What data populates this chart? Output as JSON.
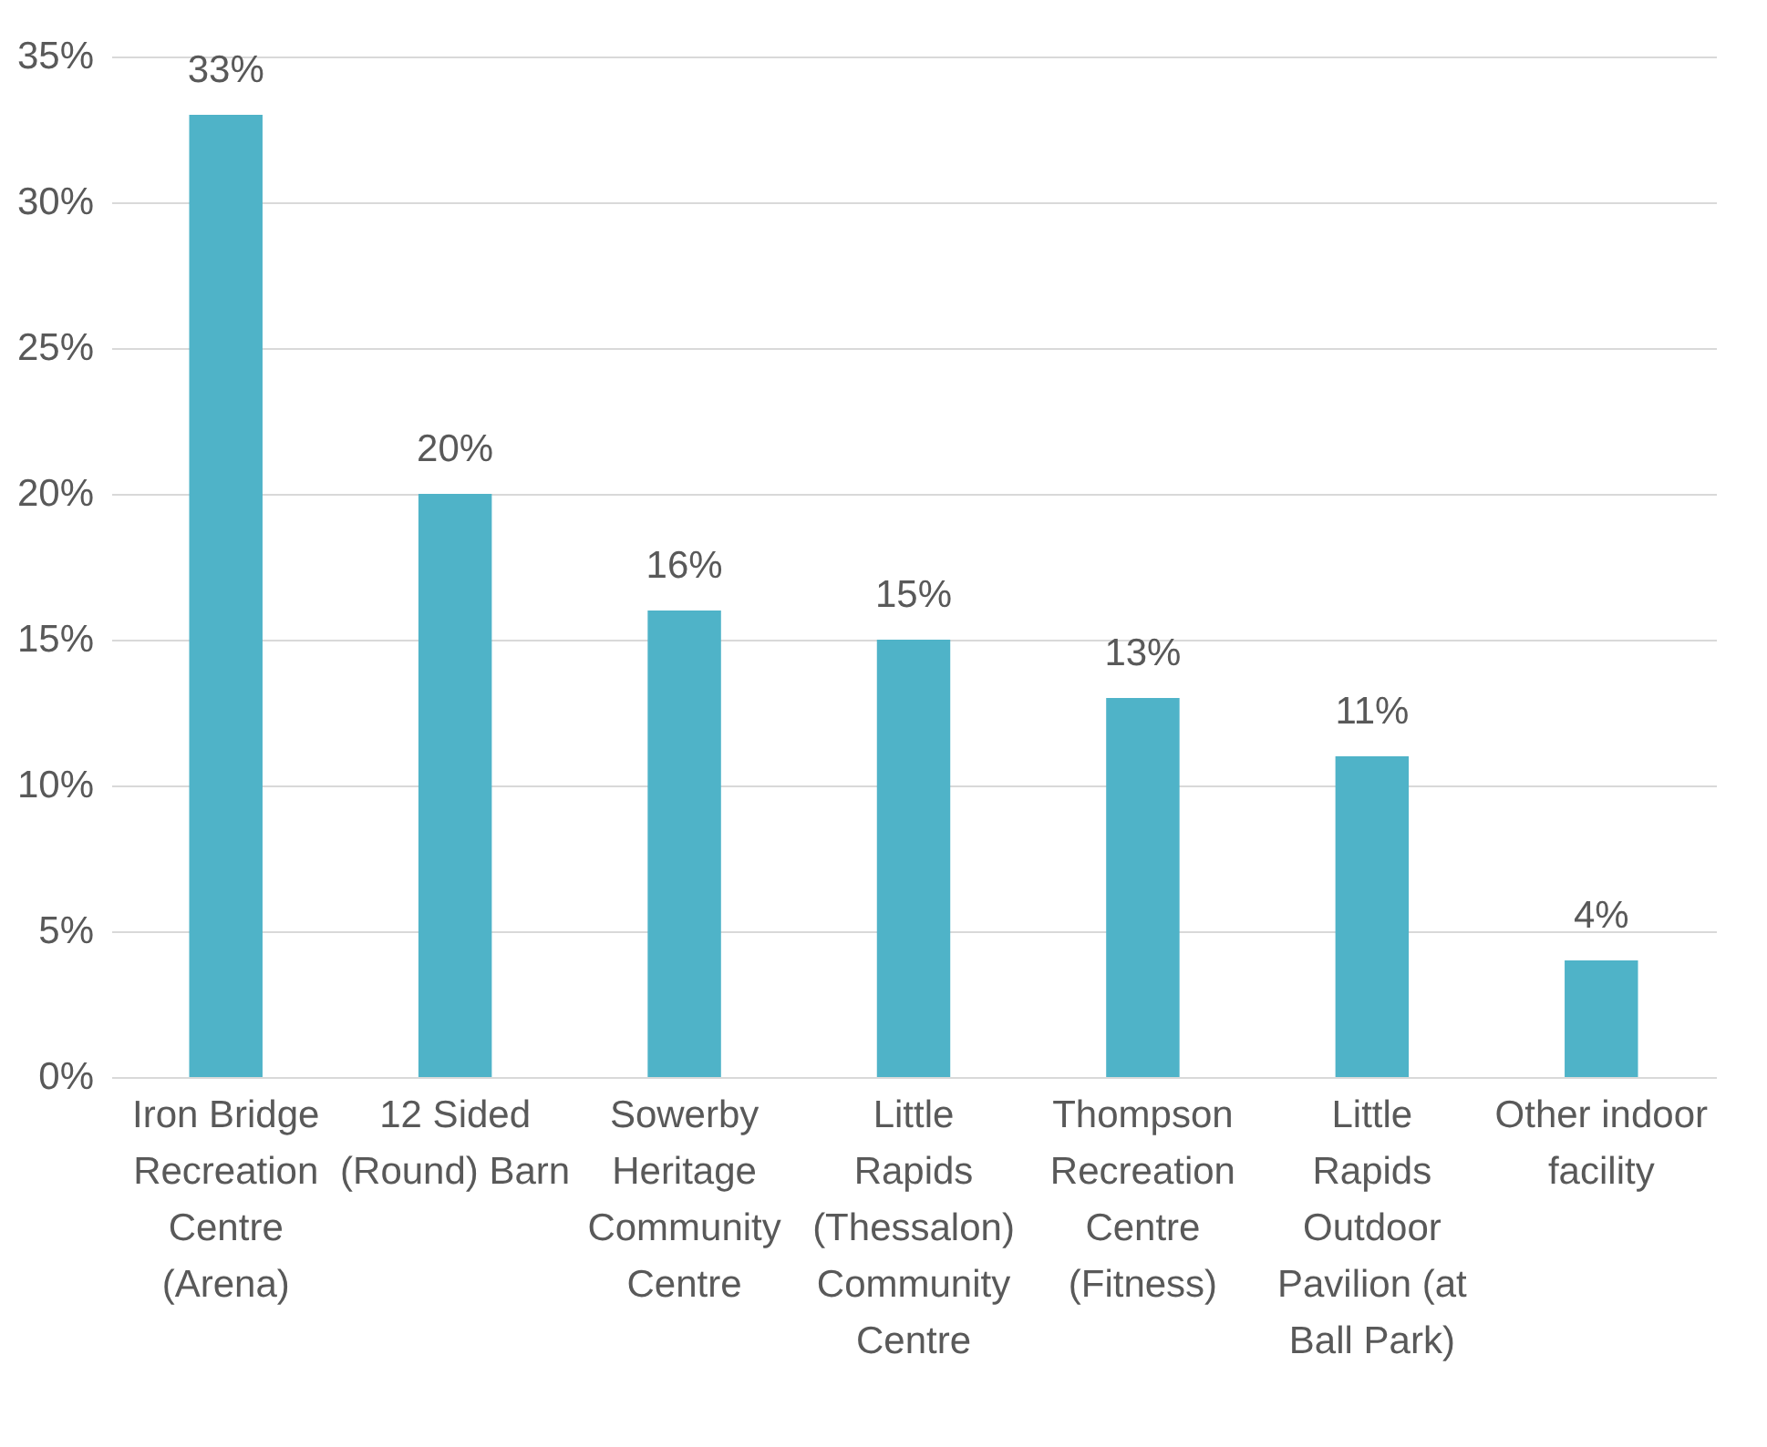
{
  "chart_data": {
    "type": "bar",
    "categories": [
      "Iron Bridge Recreation Centre (Arena)",
      "12 Sided (Round) Barn",
      "Sowerby Heritage Community Centre",
      "Little Rapids (Thessalon) Community Centre",
      "Thompson Recreation Centre (Fitness)",
      "Little Rapids Outdoor Pavilion (at Ball Park)",
      "Other indoor facility"
    ],
    "values": [
      33,
      20,
      16,
      15,
      13,
      11,
      4
    ],
    "color": "#4fb3c8",
    "ylim": [
      0,
      35
    ],
    "yticks": [
      {
        "value": 0,
        "label": "0%"
      },
      {
        "value": 5,
        "label": "5%"
      },
      {
        "value": 10,
        "label": "10%"
      },
      {
        "value": 15,
        "label": "15%"
      },
      {
        "value": 20,
        "label": "20%"
      },
      {
        "value": 25,
        "label": "25%"
      },
      {
        "value": 30,
        "label": "30%"
      },
      {
        "value": 35,
        "label": "35%"
      }
    ],
    "value_labels": [
      "33%",
      "20%",
      "16%",
      "15%",
      "13%",
      "11%",
      "4%"
    ],
    "grid": "y"
  }
}
